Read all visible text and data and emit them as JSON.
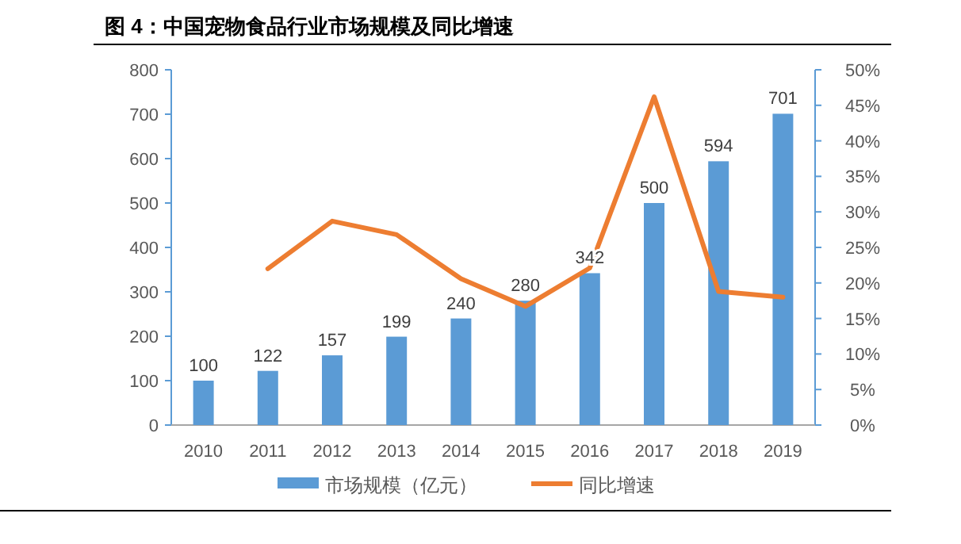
{
  "chart_data": {
    "type": "bar",
    "title": "图 4：中国宠物食品行业市场规模及同比增速",
    "categories": [
      "2010",
      "2011",
      "2012",
      "2013",
      "2014",
      "2015",
      "2016",
      "2017",
      "2018",
      "2019"
    ],
    "series": [
      {
        "name": "市场规模（亿元）",
        "color": "#5b9bd5",
        "values": [
          100,
          122,
          157,
          199,
          240,
          280,
          342,
          500,
          594,
          701
        ],
        "value_labels": [
          "100",
          "122",
          "157",
          "199",
          "240",
          "280",
          "342",
          "500",
          "594",
          "701"
        ]
      },
      {
        "name": "同比增速",
        "type": "line",
        "axis": "y2",
        "color": "#ed7d31",
        "marker": "none",
        "values": [
          null,
          22,
          28.7,
          26.8,
          20.6,
          16.7,
          22.1,
          46.2,
          18.8,
          18.0
        ]
      }
    ],
    "ylim": [
      0,
      800
    ],
    "yticks": [
      0,
      100,
      200,
      300,
      400,
      500,
      600,
      700,
      800
    ],
    "y2lim": [
      0,
      50
    ],
    "y2ticks": [
      {
        "value": 0,
        "label": "0%"
      },
      {
        "value": 5,
        "label": "5%"
      },
      {
        "value": 10,
        "label": "10%"
      },
      {
        "value": 15,
        "label": "15%"
      },
      {
        "value": 20,
        "label": "20%"
      },
      {
        "value": 25,
        "label": "25%"
      },
      {
        "value": 30,
        "label": "30%"
      },
      {
        "value": 35,
        "label": "35%"
      },
      {
        "value": 40,
        "label": "40%"
      },
      {
        "value": 45,
        "label": "45%"
      },
      {
        "value": 50,
        "label": "50%"
      }
    ],
    "legend": "bottom",
    "grid": false
  }
}
